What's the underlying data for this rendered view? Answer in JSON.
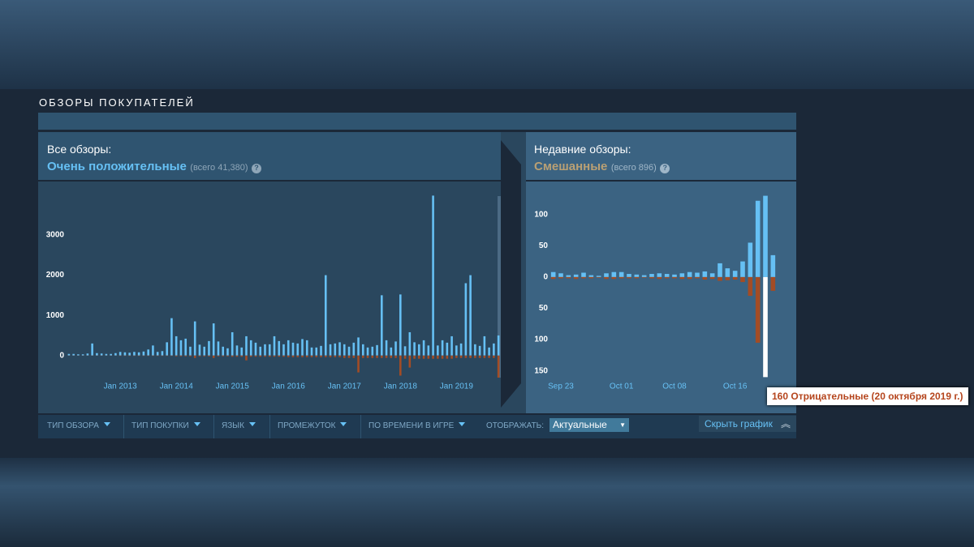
{
  "section_title": "ОБЗОРЫ ПОКУПАТЕЛЕЙ",
  "all_reviews": {
    "label": "Все обзоры:",
    "rating": "Очень положительные",
    "total": "(всего 41,380)",
    "help": "?"
  },
  "recent_reviews": {
    "label": "Недавние обзоры:",
    "rating": "Смешанные",
    "total": "(всего 896)",
    "help": "?"
  },
  "filters": [
    "ТИП ОБЗОРА",
    "ТИП ПОКУПКИ",
    "ЯЗЫК",
    "ПРОМЕЖУТОК",
    "ПО ВРЕМЕНИ В ИГРЕ"
  ],
  "display": {
    "label": "ОТОБРАЖАТЬ:",
    "value": "Актуальные"
  },
  "hide_graph": "Скрыть график",
  "chart_data": [
    {
      "type": "bar",
      "ylim": [
        -550,
        4250
      ],
      "yticks": [
        0,
        1000,
        2000,
        3000
      ],
      "categories": [
        null,
        null,
        null,
        null,
        null,
        null,
        null,
        null,
        null,
        null,
        null,
        "Jan 2013",
        null,
        null,
        null,
        null,
        null,
        null,
        null,
        null,
        null,
        null,
        null,
        "Jan 2014",
        null,
        null,
        null,
        null,
        null,
        null,
        null,
        null,
        null,
        null,
        null,
        "Jan 2015",
        null,
        null,
        null,
        null,
        null,
        null,
        null,
        null,
        null,
        null,
        null,
        "Jan 2016",
        null,
        null,
        null,
        null,
        null,
        null,
        null,
        null,
        null,
        null,
        null,
        "Jan 2017",
        null,
        null,
        null,
        null,
        null,
        null,
        null,
        null,
        null,
        null,
        null,
        "Jan 2018",
        null,
        null,
        null,
        null,
        null,
        null,
        null,
        null,
        null,
        null,
        null,
        "Jan 2019",
        null,
        null,
        null,
        null,
        null,
        null,
        null,
        null,
        null
      ],
      "series": [
        {
          "color": "#66c0f4",
          "values": [
            40,
            40,
            30,
            30,
            50,
            300,
            60,
            50,
            40,
            40,
            60,
            90,
            80,
            70,
            90,
            80,
            100,
            150,
            250,
            90,
            110,
            330,
            930,
            480,
            380,
            420,
            220,
            850,
            270,
            220,
            360,
            800,
            350,
            220,
            180,
            580,
            250,
            200,
            480,
            380,
            320,
            220,
            280,
            280,
            480,
            360,
            280,
            380,
            320,
            300,
            410,
            380,
            200,
            200,
            240,
            2000,
            280,
            300,
            330,
            280,
            220,
            320,
            450,
            280,
            200,
            220,
            260,
            1500,
            380,
            200,
            350,
            1520,
            230,
            580,
            330,
            280,
            380,
            250,
            3980,
            250,
            380,
            320,
            480,
            250,
            300,
            1800,
            2000,
            280,
            240,
            480,
            200,
            300,
            500
          ]
        },
        {
          "color": "#a34c25",
          "values": [
            -5,
            -5,
            -5,
            -5,
            -5,
            -5,
            -5,
            -5,
            -5,
            -5,
            -5,
            -10,
            -10,
            -10,
            -10,
            -10,
            -10,
            -10,
            -10,
            -10,
            -10,
            -10,
            -10,
            -20,
            -20,
            -20,
            -20,
            -60,
            -20,
            -20,
            -20,
            -60,
            -20,
            -20,
            -20,
            -30,
            -30,
            -30,
            -120,
            -30,
            -30,
            -30,
            -30,
            -30,
            -30,
            -30,
            -30,
            -40,
            -40,
            -40,
            -40,
            -40,
            -40,
            -40,
            -40,
            -40,
            -40,
            -40,
            -40,
            -60,
            -60,
            -60,
            -420,
            -60,
            -60,
            -60,
            -60,
            -60,
            -60,
            -60,
            -60,
            -500,
            -80,
            -300,
            -80,
            -80,
            -80,
            -80,
            -80,
            -80,
            -80,
            -80,
            -80,
            -60,
            -60,
            -60,
            -60,
            -60,
            -60,
            -60,
            -60,
            -60,
            -550
          ]
        }
      ]
    },
    {
      "type": "bar",
      "ylim": [
        -166,
        145
      ],
      "yticks": [
        100,
        50,
        0,
        {
          "value": -50,
          "label": "50"
        },
        {
          "value": -100,
          "label": "100"
        },
        {
          "value": -150,
          "label": "150"
        }
      ],
      "categories": [
        null,
        "Sep 23",
        null,
        null,
        null,
        null,
        null,
        null,
        null,
        "Oct 01",
        null,
        null,
        null,
        null,
        null,
        null,
        "Oct 08",
        null,
        null,
        null,
        null,
        null,
        null,
        null,
        "Oct 16",
        null,
        null,
        null,
        null,
        null
      ],
      "series": [
        {
          "color": "#66c0f4",
          "values": [
            8,
            6,
            3,
            4,
            7,
            3,
            2,
            6,
            8,
            8,
            5,
            4,
            3,
            5,
            6,
            5,
            4,
            6,
            8,
            7,
            9,
            6,
            22,
            14,
            10,
            25,
            55,
            122,
            130,
            35
          ]
        },
        {
          "color": "#a34c25",
          "values": [
            -3,
            -2,
            -2,
            -3,
            -2,
            -2,
            -1,
            -3,
            -3,
            -2,
            -2,
            -2,
            -1,
            -2,
            -3,
            -2,
            -2,
            -3,
            -3,
            -2,
            -4,
            -3,
            -6,
            -5,
            -4,
            -8,
            -30,
            -105,
            -160,
            -22
          ]
        }
      ],
      "tooltip": {
        "text": "160 Отрицательные (20 октября 2019 г.)",
        "series": 1,
        "index": 28,
        "highlight_color": "#ffffff"
      }
    }
  ]
}
